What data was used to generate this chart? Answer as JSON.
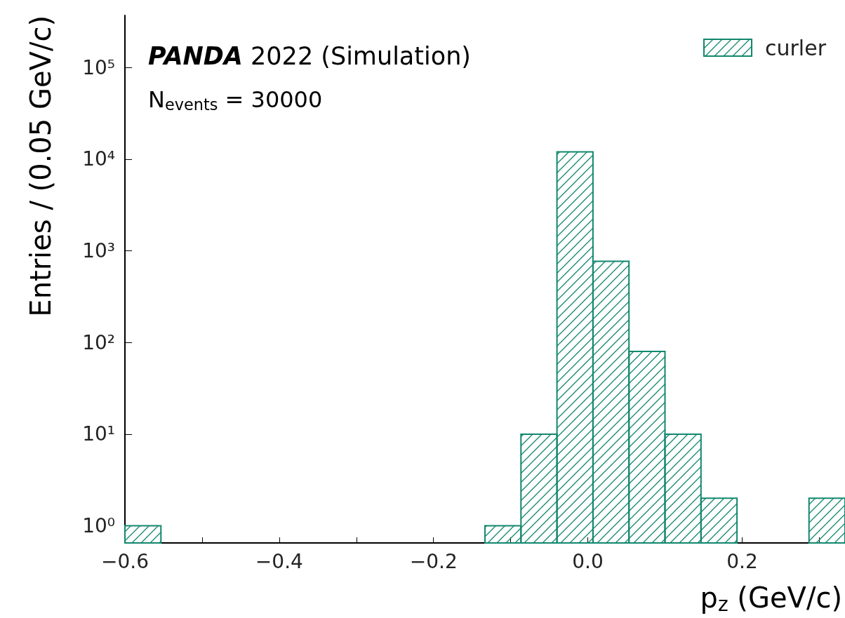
{
  "chart_data": {
    "type": "histogram",
    "title": "PANDA 2022 (Simulation)",
    "xlabel": "p$_{z}$ (GeV/c)",
    "ylabel": "Entries / (0.05 GeV/c)",
    "annotations": [
      "N$_{events}$ = 30000"
    ],
    "bins": [
      -0.6,
      -0.55333,
      -0.50667,
      -0.46,
      -0.41333,
      -0.36667,
      -0.32,
      -0.27333,
      -0.22667,
      -0.18,
      -0.13333,
      -0.08667,
      -0.04,
      0.00667,
      0.05333,
      0.1,
      0.14667,
      0.19333,
      0.24,
      0.28667,
      0.33333
    ],
    "series": [
      {
        "name": "curler",
        "color": "#11876d",
        "values": [
          1,
          null,
          null,
          null,
          null,
          null,
          null,
          null,
          null,
          null,
          1,
          10,
          12000,
          770,
          80,
          10,
          2,
          null,
          null,
          2
        ]
      }
    ],
    "log": "y",
    "xlim": [
      -0.6,
      0.33333
    ],
    "ylim": [
      0.65,
      370000
    ],
    "xticks": [
      {
        "value": -0.6,
        "label": "−0.6"
      },
      {
        "value": -0.5,
        "label": null
      },
      {
        "value": -0.4,
        "label": "−0.4"
      },
      {
        "value": -0.3,
        "label": null
      },
      {
        "value": -0.2,
        "label": "−0.2"
      },
      {
        "value": -0.1,
        "label": null
      },
      {
        "value": 0,
        "label": "0.0"
      },
      {
        "value": 0.1,
        "label": null
      },
      {
        "value": 0.2,
        "label": "0.2"
      },
      {
        "value": 0.3,
        "label": null
      }
    ],
    "yticks": [
      {
        "value": 1,
        "label": "10⁰"
      },
      {
        "value": 10,
        "label": "10¹"
      },
      {
        "value": 100,
        "label": "10²"
      },
      {
        "value": 1000,
        "label": "10³"
      },
      {
        "value": 10000,
        "label": "10⁴"
      },
      {
        "value": 100000,
        "label": "10⁵"
      }
    ],
    "grid": false,
    "legend": "top right"
  }
}
